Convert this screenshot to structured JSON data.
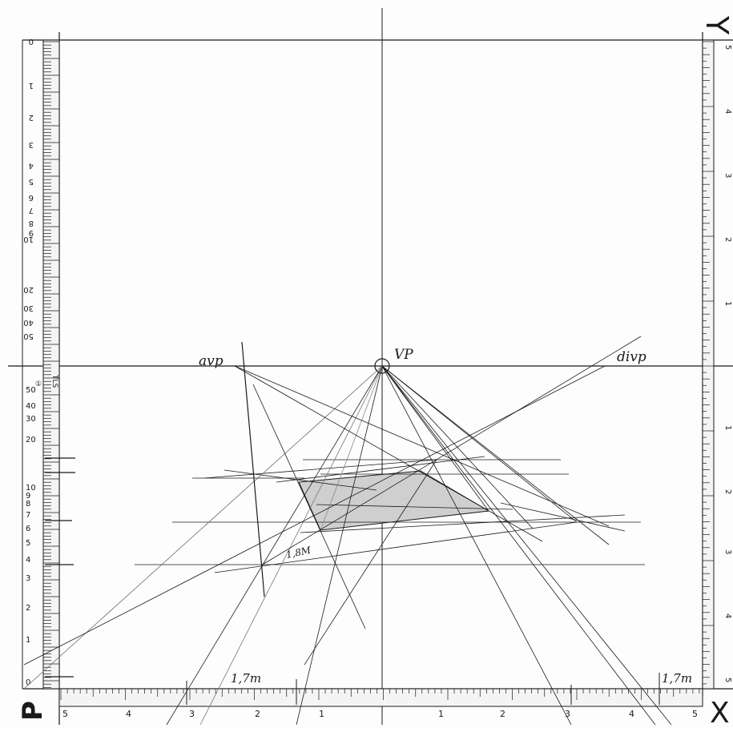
{
  "corner_labels": {
    "top_right": "Y",
    "bottom_left": "P",
    "bottom_right": "X"
  },
  "points": {
    "vp": "VP",
    "avp": "avp",
    "divp": "divp"
  },
  "annotations": {
    "height_left": "1,7m",
    "height_right": "1,7m",
    "diagonal": "1,8M"
  },
  "bottom_scale": [
    "5",
    "4",
    "3",
    "2",
    "1",
    "",
    "1",
    "2",
    "3",
    "4",
    "5"
  ],
  "left_scale_upper": [
    "0",
    "1",
    "2",
    "3",
    "4",
    "5",
    "6",
    "7",
    "8",
    "9",
    "10",
    "20",
    "30",
    "40",
    "50"
  ],
  "left_scale_lower": [
    "50",
    "40",
    "30",
    "20",
    "10",
    "9",
    "8",
    "7",
    "6",
    "5",
    "4",
    "3",
    "2",
    "1",
    "0"
  ],
  "left_scale_marks": {
    "tag": "TLS",
    "circle": "①"
  },
  "right_scale_upper": [
    "5",
    "4",
    "3",
    "2",
    "1"
  ],
  "right_scale_lower": [
    "1",
    "2",
    "3",
    "4",
    "5"
  ],
  "colors": {
    "ink": "#1a1a1a",
    "paper": "#fdfdfd",
    "fill": "#cfcfcf"
  }
}
